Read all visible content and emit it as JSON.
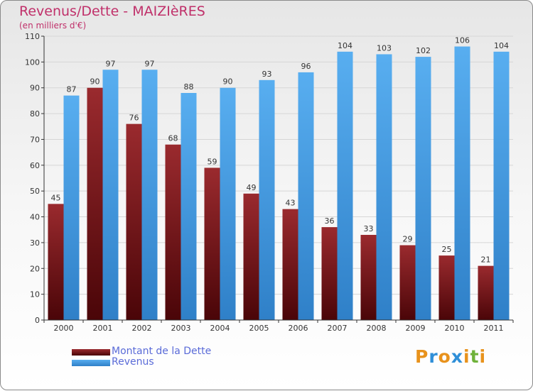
{
  "title": "Revenus/Dette - MAIZIèRES",
  "subtitle": "(en milliers d'€)",
  "logo": {
    "text": "Proxiti",
    "letters": [
      "P",
      "r",
      "o",
      "x",
      "i",
      "t",
      "i"
    ],
    "colors": [
      "#e8921c",
      "#2f8fd8",
      "#e8921c",
      "#2f8fd8",
      "#e8921c",
      "#6fb23a",
      "#e8921c"
    ]
  },
  "colors": {
    "debt": "#7a1a1e",
    "revenue": "#3d95dd",
    "accent_text": "#c0306a",
    "legend_text": "#5a6bd8"
  },
  "chart_data": {
    "type": "bar",
    "categories": [
      "2000",
      "2001",
      "2002",
      "2003",
      "2004",
      "2005",
      "2006",
      "2007",
      "2008",
      "2009",
      "2010",
      "2011"
    ],
    "series": [
      {
        "name": "Montant de la Dette",
        "values": [
          45,
          90,
          76,
          68,
          59,
          49,
          43,
          36,
          33,
          29,
          25,
          21
        ]
      },
      {
        "name": "Revenus",
        "values": [
          87,
          97,
          97,
          88,
          90,
          93,
          96,
          104,
          103,
          102,
          106,
          104
        ]
      }
    ],
    "yticks": [
      0,
      10,
      20,
      30,
      40,
      50,
      60,
      70,
      80,
      90,
      100,
      110
    ],
    "ylim": [
      0,
      110
    ],
    "grid": true,
    "legend_position": "bottom-left"
  }
}
